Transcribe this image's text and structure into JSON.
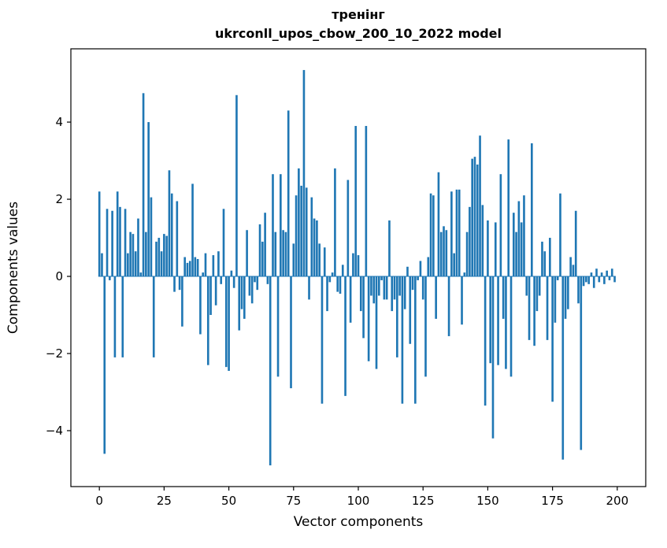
{
  "chart_data": {
    "type": "bar",
    "title": "тренінг",
    "subtitle": "ukrconll_upos_cbow_200_10_2022 model",
    "xlabel": "Vector components",
    "ylabel": "Components values",
    "legend": "none",
    "grid": false,
    "bar_color": "#1f77b4",
    "xlim": [
      -11,
      211
    ],
    "ylim": [
      -5.45,
      5.9
    ],
    "x_ticks": [
      {
        "value": 0,
        "label": "0"
      },
      {
        "value": 25,
        "label": "25"
      },
      {
        "value": 50,
        "label": "50"
      },
      {
        "value": 75,
        "label": "75"
      },
      {
        "value": 100,
        "label": "100"
      },
      {
        "value": 125,
        "label": "125"
      },
      {
        "value": 150,
        "label": "150"
      },
      {
        "value": 175,
        "label": "175"
      },
      {
        "value": 200,
        "label": "200"
      }
    ],
    "y_ticks": [
      {
        "value": -4,
        "label": "−4"
      },
      {
        "value": -2,
        "label": "−2"
      },
      {
        "value": 0,
        "label": "0"
      },
      {
        "value": 2,
        "label": "2"
      },
      {
        "value": 4,
        "label": "4"
      }
    ],
    "values": [
      2.2,
      0.6,
      -4.6,
      1.75,
      -0.1,
      1.7,
      -2.1,
      2.2,
      1.8,
      -2.1,
      1.75,
      0.6,
      1.15,
      1.1,
      0.65,
      1.5,
      0.1,
      4.75,
      1.15,
      4.0,
      2.05,
      -2.1,
      0.9,
      1.0,
      0.65,
      1.1,
      1.05,
      2.75,
      2.15,
      -0.4,
      1.95,
      -0.35,
      -1.3,
      0.5,
      0.35,
      0.4,
      2.4,
      0.5,
      0.45,
      -1.5,
      0.1,
      0.6,
      -2.3,
      -1.0,
      0.55,
      -0.75,
      0.65,
      -0.2,
      1.75,
      -2.35,
      -2.45,
      0.15,
      -0.3,
      4.7,
      -1.4,
      -0.85,
      -1.1,
      1.2,
      -0.5,
      -0.7,
      -0.15,
      -0.35,
      1.35,
      0.9,
      1.65,
      -0.2,
      -4.9,
      2.65,
      1.15,
      -2.6,
      2.65,
      1.2,
      1.15,
      4.3,
      -2.9,
      0.85,
      2.1,
      2.8,
      2.35,
      5.35,
      2.3,
      -0.6,
      2.05,
      1.5,
      1.45,
      0.85,
      -3.3,
      0.75,
      -0.9,
      -0.15,
      0.1,
      2.8,
      -0.4,
      -0.45,
      0.3,
      -3.1,
      2.5,
      -1.2,
      0.6,
      3.9,
      0.55,
      -0.9,
      -1.6,
      3.9,
      -2.2,
      -0.5,
      -0.7,
      -2.4,
      -0.5,
      -0.1,
      -0.6,
      -0.6,
      1.45,
      -0.9,
      -0.6,
      -2.1,
      -0.5,
      -3.3,
      -0.85,
      0.25,
      -1.75,
      -0.35,
      -3.3,
      -0.1,
      0.4,
      -0.6,
      -2.6,
      0.5,
      2.15,
      2.1,
      -1.1,
      2.7,
      1.15,
      1.3,
      1.2,
      -1.55,
      2.2,
      0.6,
      2.25,
      2.25,
      -1.25,
      0.1,
      1.15,
      1.8,
      3.05,
      3.1,
      2.9,
      3.65,
      1.85,
      -3.35,
      1.45,
      -2.25,
      -4.2,
      1.4,
      -2.3,
      2.65,
      -1.1,
      -2.4,
      3.55,
      -2.6,
      1.65,
      1.15,
      1.95,
      1.4,
      2.1,
      -0.5,
      -1.65,
      3.45,
      -1.8,
      -0.9,
      -0.5,
      0.9,
      0.65,
      -1.65,
      1.0,
      -3.25,
      -1.2,
      -0.1,
      2.15,
      -4.75,
      -1.1,
      -0.85,
      0.5,
      0.3,
      1.7,
      -0.7,
      -4.5,
      -0.25,
      -0.15,
      -0.2,
      0.1,
      -0.3,
      0.2,
      -0.15,
      0.1,
      -0.2,
      0.15,
      -0.1,
      0.2,
      -0.15
    ]
  }
}
